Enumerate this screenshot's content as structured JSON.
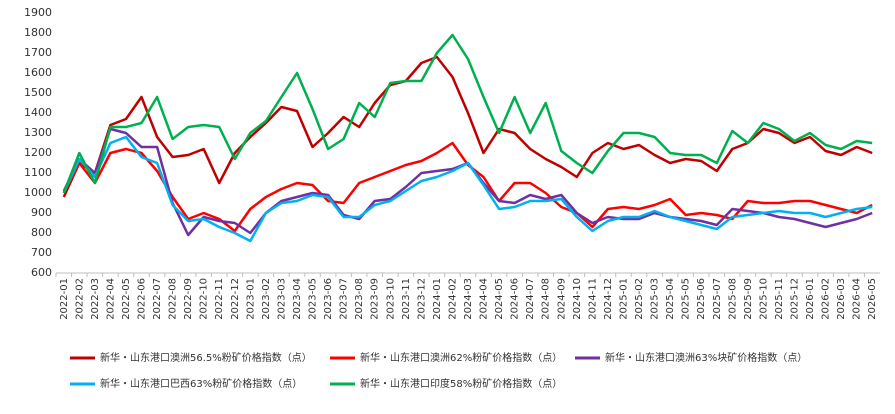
{
  "chart_data": {
    "type": "line",
    "categories": [
      "2022-01",
      "2022-02",
      "2022-03",
      "2022-04",
      "2022-05",
      "2022-06",
      "2022-07",
      "2022-08",
      "2022-09",
      "2022-10",
      "2022-11",
      "2022-12",
      "2023-01",
      "2023-02",
      "2023-03",
      "2023-04",
      "2023-05",
      "2023-06",
      "2023-07",
      "2023-08",
      "2023-09",
      "2023-10",
      "2023-11",
      "2023-12",
      "2024-01",
      "2024-02",
      "2024-03",
      "2024-04",
      "2024-05",
      "2024-06",
      "2024-07",
      "2024-08",
      "2024-09",
      "2024-10",
      "2024-11",
      "2024-12",
      "2025-01",
      "2025-02",
      "2025-03",
      "2025-04",
      "2025-05",
      "2025-06",
      "2025-07",
      "2025-08",
      "2025-09",
      "2025-10",
      "2025-11",
      "2025-12",
      "2026-01",
      "2026-02",
      "2026-03",
      "2026-04",
      "2026-05"
    ],
    "series": [
      {
        "name": "新华・山东港口澳洲56.5%粉矿价格指数（点）",
        "color": "#c00000",
        "values": [
          980,
          1150,
          1100,
          1340,
          1370,
          1480,
          1280,
          1180,
          1190,
          1220,
          1050,
          1200,
          1280,
          1350,
          1430,
          1410,
          1230,
          1300,
          1380,
          1330,
          1450,
          1540,
          1560,
          1650,
          1680,
          1580,
          1400,
          1200,
          1320,
          1300,
          1220,
          1170,
          1130,
          1080,
          1200,
          1250,
          1220,
          1240,
          1190,
          1150,
          1170,
          1160,
          1110,
          1220,
          1250,
          1320,
          1300,
          1250,
          1280,
          1210,
          1190,
          1230,
          1200
        ]
      },
      {
        "name": "新华・山东港口澳洲62%粉矿价格指数（点）",
        "color": "#ff0000",
        "values": [
          1000,
          1150,
          1050,
          1200,
          1220,
          1200,
          1110,
          980,
          870,
          900,
          870,
          810,
          920,
          980,
          1020,
          1050,
          1040,
          960,
          950,
          1050,
          1080,
          1110,
          1140,
          1160,
          1200,
          1250,
          1140,
          1080,
          960,
          1050,
          1050,
          1000,
          930,
          900,
          830,
          920,
          930,
          920,
          940,
          970,
          890,
          900,
          890,
          870,
          960,
          950,
          950,
          960,
          960,
          940,
          920,
          900,
          940
        ]
      },
      {
        "name": "新华・山东港口澳洲63%块矿价格指数（点）",
        "color": "#7030a0",
        "values": [
          1010,
          1170,
          1100,
          1320,
          1300,
          1230,
          1230,
          950,
          790,
          880,
          860,
          850,
          800,
          900,
          960,
          980,
          1000,
          990,
          890,
          870,
          960,
          970,
          1030,
          1100,
          1110,
          1120,
          1150,
          1050,
          960,
          950,
          990,
          970,
          990,
          900,
          850,
          880,
          870,
          870,
          900,
          880,
          870,
          860,
          840,
          920,
          910,
          900,
          880,
          870,
          850,
          830,
          850,
          870,
          900
        ]
      },
      {
        "name": "新华・山东港口巴西63%粉矿价格指数（点）",
        "color": "#00b0f0",
        "values": [
          1000,
          1170,
          1080,
          1250,
          1280,
          1180,
          1150,
          940,
          860,
          870,
          830,
          800,
          760,
          900,
          950,
          960,
          990,
          980,
          880,
          880,
          940,
          960,
          1010,
          1060,
          1080,
          1110,
          1150,
          1040,
          920,
          930,
          960,
          960,
          970,
          880,
          810,
          860,
          880,
          880,
          910,
          880,
          860,
          840,
          820,
          880,
          890,
          900,
          910,
          900,
          900,
          880,
          900,
          920,
          930
        ]
      },
      {
        "name": "新华・山东港口印度58%粉矿价格指数（点）",
        "color": "#00b050",
        "values": [
          1000,
          1200,
          1050,
          1330,
          1330,
          1350,
          1480,
          1270,
          1330,
          1340,
          1330,
          1170,
          1300,
          1360,
          1480,
          1600,
          1420,
          1220,
          1270,
          1450,
          1380,
          1550,
          1560,
          1560,
          1700,
          1790,
          1670,
          1480,
          1300,
          1480,
          1300,
          1450,
          1210,
          1150,
          1100,
          1210,
          1300,
          1300,
          1280,
          1200,
          1190,
          1190,
          1150,
          1310,
          1250,
          1350,
          1320,
          1260,
          1300,
          1240,
          1220,
          1260,
          1250
        ]
      }
    ],
    "ylim": [
      600,
      1900
    ],
    "yticks": [
      600,
      700,
      800,
      900,
      1000,
      1100,
      1200,
      1300,
      1400,
      1500,
      1600,
      1700,
      1800,
      1900
    ],
    "grid": false
  }
}
